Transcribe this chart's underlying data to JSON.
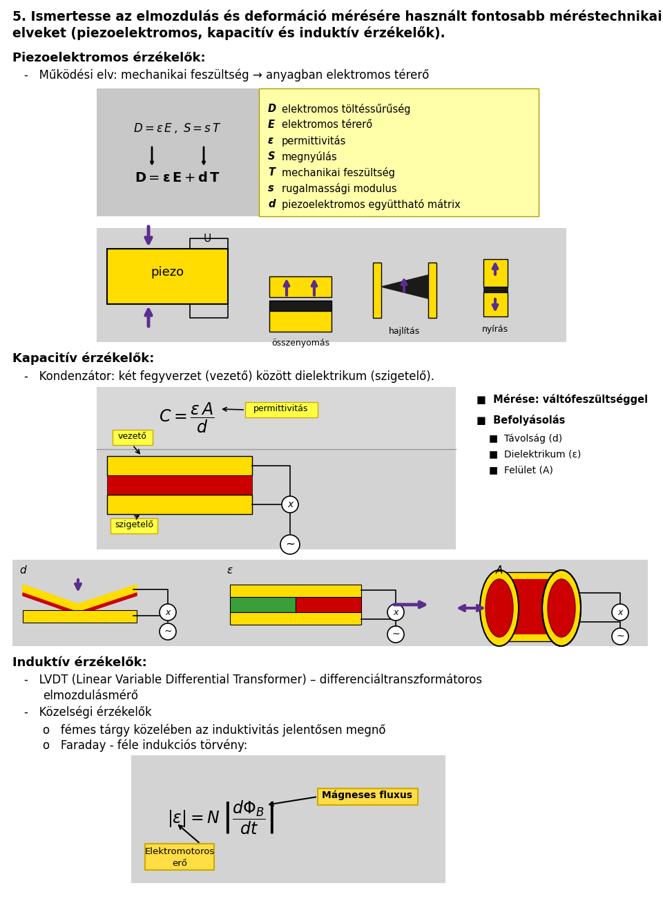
{
  "title_line1": "5. Ismertesse az elmozdulás és deformáció mérésére használt fontosabb méréstechnikai",
  "title_line2": "elveket (piezoelektromos, kapacitív és induktív érzékelők).",
  "s1_title": "Piezoelektromos érzékelők",
  "s1_bullet": "Működési elv: mechanikai feszültség → anyagban elektromos térerő",
  "s2_title": "Kapacitív érzékelők",
  "s2_bullet": "Kondenzátor: két fegyverzet (vezető) között dielektrikum (szigetelő).",
  "s3_title": "Induktív érzékelők",
  "s3_b1": "LVDT (Linear Variable Differential Transformer) – differenciáltranszformátoros",
  "s3_b1b": "elmozdulásmérő",
  "s3_b2": "Közelségi érzékelők",
  "s3_s1": "fémes tárgy közelében az induktivitás jelentősen megnő",
  "s3_s2": "Faraday - féle indukciós törvény:",
  "yellow": "#ffff00",
  "yellow2": "#ffdd00",
  "gray_bg": "#d3d3d3",
  "purple": "#5b2d8e",
  "red": "#cc0000",
  "green": "#3a9e3a",
  "black": "#000000",
  "white": "#ffffff"
}
